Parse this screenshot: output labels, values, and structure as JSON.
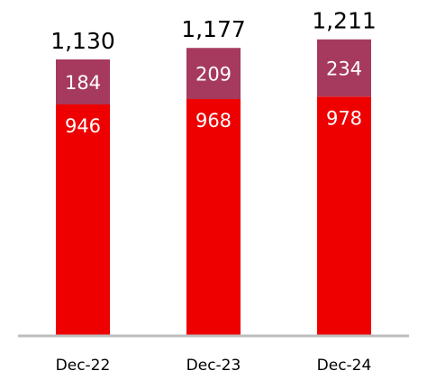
{
  "chart_data": {
    "type": "bar",
    "stacked": true,
    "categories": [
      "Dec-22",
      "Dec-23",
      "Dec-24"
    ],
    "series": [
      {
        "values": [
          946,
          968,
          978
        ]
      },
      {
        "values": [
          184,
          209,
          234
        ]
      }
    ],
    "totals": [
      "1,130",
      "1,177",
      "1,211"
    ],
    "ylim": [
      0,
      1211
    ],
    "grid": false,
    "legend": "none",
    "colors": {
      "bottom_segment": "#ee0000",
      "top_segment": "#a63a5e",
      "axis": "#bdbdbd"
    }
  }
}
